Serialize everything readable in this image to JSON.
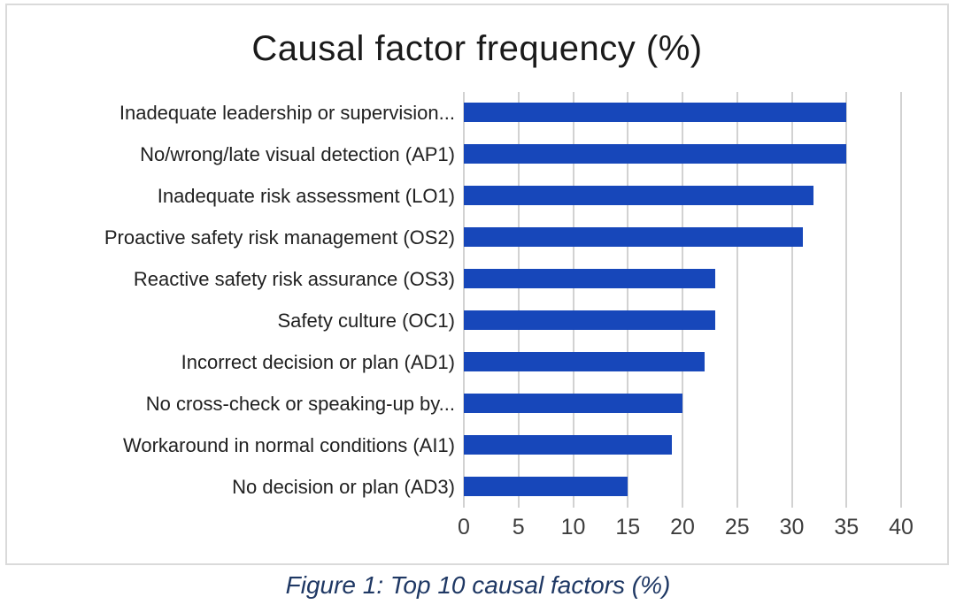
{
  "chart_data": {
    "type": "bar",
    "orientation": "horizontal",
    "title": "Causal factor frequency (%)",
    "caption": "Figure 1: Top 10 causal factors (%)",
    "categories": [
      "Inadequate leadership or supervision...",
      "No/wrong/late visual detection (AP1)",
      "Inadequate risk assessment (LO1)",
      "Proactive safety risk management (OS2)",
      "Reactive safety risk assurance (OS3)",
      "Safety culture (OC1)",
      "Incorrect decision or plan (AD1)",
      "No cross-check or speaking-up by...",
      "Workaround in normal conditions (AI1)",
      "No decision or plan (AD3)"
    ],
    "values": [
      35,
      35,
      32,
      31,
      23,
      23,
      22,
      20,
      19,
      15
    ],
    "x_ticks": [
      0,
      5,
      10,
      15,
      20,
      25,
      30,
      35,
      40
    ],
    "xlim": [
      0,
      40
    ],
    "grid": true,
    "legend": "none",
    "bar_color": "#1747BA",
    "gridline_color": "#D2D2D2",
    "title_color": "#1A1A1A",
    "caption_color": "#1F3864"
  }
}
